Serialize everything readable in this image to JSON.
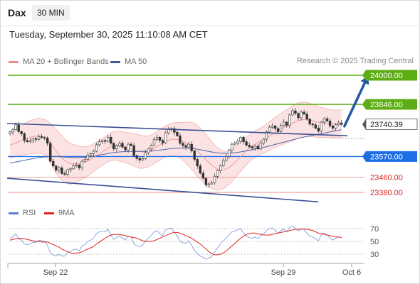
{
  "header": {
    "title": "Dax",
    "timeframe": "30 MIN"
  },
  "datetime": "Tuesday, September 30, 2025 11:10:08 AM CET",
  "copyright": "Research © 2025 Trading Central",
  "legend": {
    "ma_bollinger": {
      "label": "MA 20 + Bollinger Bands",
      "color": "#f08c8c"
    },
    "ma50": {
      "label": "MA 50",
      "color": "#3b5a9a"
    },
    "rsi": {
      "label": "RSI",
      "color": "#5a7fd0"
    },
    "ma9": {
      "label": "9MA",
      "color": "#e02020"
    }
  },
  "chart_data": [
    {
      "type": "candlestick",
      "ylim": [
        23330,
        24030
      ],
      "x_ticks": [
        "Sep 22",
        "Sep 29",
        "Oct 6"
      ],
      "levels": [
        {
          "value": 24000.0,
          "label": "24000.00",
          "style": "resistance",
          "color": "#5cae14"
        },
        {
          "value": 23846.0,
          "label": "23846.00",
          "style": "resistance",
          "color": "#5cae14"
        },
        {
          "value": 23740.39,
          "label": "23740.39",
          "style": "current",
          "color": "#333333"
        },
        {
          "value": 23570.0,
          "label": "23570.00",
          "style": "pivot",
          "color": "#1e6ee6"
        },
        {
          "value": 23460.0,
          "label": "23460.00",
          "style": "support",
          "color": "#e03030"
        },
        {
          "value": 23380.0,
          "label": "23380.00",
          "style": "support",
          "color": "#e03030"
        }
      ],
      "channel": {
        "upper": [
          [
            0,
            23745
          ],
          [
            117,
            23680
          ]
        ],
        "lower": [
          [
            0,
            23455
          ],
          [
            107,
            23330
          ]
        ]
      },
      "projection": [
        [
          116,
          23730
        ],
        [
          124,
          23990
        ]
      ],
      "closes": [
        23700,
        23712,
        23738,
        23702,
        23690,
        23655,
        23648,
        23652,
        23665,
        23660,
        23675,
        23671,
        23668,
        23640,
        23545,
        23520,
        23498,
        23510,
        23480,
        23476,
        23500,
        23505,
        23520,
        23525,
        23510,
        23545,
        23555,
        23578,
        23585,
        23598,
        23632,
        23648,
        23655,
        23650,
        23672,
        23640,
        23610,
        23625,
        23640,
        23620,
        23605,
        23635,
        23628,
        23575,
        23560,
        23552,
        23560,
        23590,
        23610,
        23630,
        23660,
        23672,
        23655,
        23642,
        23695,
        23712,
        23718,
        23698,
        23680,
        23640,
        23628,
        23620,
        23635,
        23600,
        23555,
        23520,
        23482,
        23455,
        23420,
        23425,
        23430,
        23465,
        23495,
        23520,
        23550,
        23570,
        23605,
        23635,
        23640,
        23650,
        23672,
        23648,
        23630,
        23622,
        23615,
        23625,
        23610,
        23640,
        23662,
        23700,
        23725,
        23732,
        23718,
        23702,
        23735,
        23752,
        23735,
        23790,
        23812,
        23798,
        23775,
        23805,
        23795,
        23768,
        23742,
        23738,
        23720,
        23705,
        23752,
        23770,
        23758,
        23732,
        23720,
        23738,
        23748,
        23740
      ],
      "ma20": [
        23630,
        23636,
        23642,
        23648,
        23655,
        23662,
        23668,
        23672,
        23676,
        23678,
        23680,
        23678,
        23672,
        23660,
        23642,
        23620,
        23598,
        23580,
        23562,
        23548,
        23538,
        23532,
        23530,
        23532,
        23534,
        23536,
        23540,
        23546,
        23554,
        23564,
        23574,
        23584,
        23594,
        23604,
        23614,
        23622,
        23626,
        23628,
        23626,
        23622,
        23618,
        23614,
        23610,
        23606,
        23600,
        23596,
        23594,
        23594,
        23598,
        23604,
        23612,
        23622,
        23632,
        23642,
        23650,
        23656,
        23660,
        23662,
        23660,
        23656,
        23650,
        23644,
        23636,
        23626,
        23614,
        23600,
        23584,
        23568,
        23552,
        23538,
        23524,
        23512,
        23504,
        23500,
        23500,
        23504,
        23512,
        23524,
        23538,
        23554,
        23570,
        23586,
        23600,
        23614,
        23626,
        23636,
        23644,
        23652,
        23660,
        23668,
        23678,
        23688,
        23698,
        23706,
        23714,
        23722,
        23730,
        23738,
        23746,
        23754,
        23760,
        23764,
        23766,
        23766,
        23764,
        23760,
        23756,
        23752,
        23750,
        23748,
        23746,
        23745,
        23744,
        23744,
        23744,
        23744
      ],
      "ma50": [
        23535,
        23538,
        23541,
        23544,
        23547,
        23550,
        23553,
        23556,
        23559,
        23562,
        23564,
        23566,
        23568,
        23569,
        23570,
        23570,
        23570,
        23569,
        23568,
        23567,
        23566,
        23565,
        23564,
        23564,
        23564,
        23565,
        23566,
        23567,
        23569,
        23571,
        23574,
        23577,
        23580,
        23583,
        23586,
        23589,
        23591,
        23593,
        23594,
        23595,
        23596,
        23597,
        23597,
        23597,
        23597,
        23597,
        23597,
        23597,
        23598,
        23599,
        23600,
        23602,
        23604,
        23606,
        23608,
        23610,
        23612,
        23613,
        23614,
        23615,
        23615,
        23615,
        23614,
        23613,
        23611,
        23609,
        23606,
        23603,
        23600,
        23597,
        23594,
        23591,
        23589,
        23588,
        23587,
        23587,
        23587,
        23588,
        23590,
        23592,
        23594,
        23597,
        23600,
        23603,
        23606,
        23609,
        23612,
        23615,
        23618,
        23622,
        23626,
        23630,
        23634,
        23638,
        23642,
        23646,
        23650,
        23654,
        23658,
        23662,
        23666,
        23670,
        23673,
        23676,
        23679,
        23682,
        23685,
        23688,
        23691,
        23694,
        23697,
        23700,
        23703,
        23706,
        23709,
        23712
      ],
      "band_width": [
        70,
        70,
        72,
        74,
        78,
        82,
        86,
        88,
        90,
        92,
        92,
        92,
        94,
        98,
        104,
        110,
        116,
        118,
        118,
        116,
        112,
        108,
        104,
        98,
        92,
        86,
        82,
        78,
        76,
        74,
        72,
        70,
        70,
        70,
        72,
        74,
        76,
        78,
        80,
        80,
        80,
        82,
        84,
        86,
        88,
        88,
        86,
        84,
        82,
        80,
        80,
        80,
        80,
        80,
        82,
        84,
        86,
        88,
        90,
        94,
        100,
        108,
        116,
        124,
        130,
        134,
        136,
        136,
        134,
        130,
        124,
        118,
        112,
        106,
        100,
        94,
        90,
        86,
        82,
        80,
        78,
        76,
        74,
        72,
        70,
        70,
        70,
        70,
        72,
        74,
        76,
        78,
        80,
        82,
        84,
        86,
        88,
        90,
        92,
        94,
        94,
        94,
        92,
        90,
        88,
        86,
        84,
        82,
        80,
        78,
        76,
        74,
        72,
        72,
        72,
        72
      ]
    },
    {
      "type": "line",
      "title": "RSI",
      "ylim": [
        20,
        80
      ],
      "y_ticks": [
        70,
        50,
        30
      ],
      "series": [
        {
          "name": "RSI",
          "values": [
            55,
            57,
            62,
            54,
            52,
            46,
            45,
            46,
            49,
            48,
            52,
            51,
            50,
            44,
            32,
            29,
            27,
            30,
            27,
            27,
            33,
            34,
            37,
            38,
            35,
            43,
            45,
            50,
            52,
            55,
            62,
            65,
            66,
            65,
            69,
            60,
            53,
            56,
            59,
            55,
            52,
            58,
            57,
            46,
            43,
            42,
            44,
            51,
            55,
            59,
            65,
            67,
            62,
            59,
            68,
            70,
            71,
            64,
            59,
            50,
            48,
            47,
            51,
            44,
            36,
            31,
            27,
            25,
            22,
            24,
            26,
            33,
            40,
            46,
            51,
            55,
            61,
            65,
            66,
            68,
            70,
            63,
            58,
            56,
            55,
            57,
            54,
            59,
            62,
            67,
            70,
            71,
            67,
            63,
            67,
            69,
            65,
            72,
            74,
            70,
            66,
            70,
            68,
            63,
            58,
            57,
            54,
            51,
            60,
            63,
            60,
            55,
            52,
            55,
            57,
            56
          ]
        },
        {
          "name": "9MA",
          "values": [
            52,
            53,
            54,
            55,
            55,
            54,
            53,
            52,
            51,
            50,
            50,
            49,
            49,
            49,
            47,
            45,
            43,
            41,
            38,
            36,
            34,
            32,
            31,
            32,
            32,
            34,
            36,
            38,
            40,
            42,
            46,
            49,
            52,
            55,
            58,
            60,
            61,
            61,
            61,
            60,
            59,
            58,
            57,
            56,
            55,
            53,
            51,
            50,
            50,
            50,
            51,
            53,
            55,
            57,
            59,
            61,
            63,
            64,
            64,
            63,
            61,
            59,
            57,
            55,
            52,
            49,
            46,
            42,
            38,
            34,
            31,
            29,
            29,
            30,
            32,
            35,
            39,
            43,
            47,
            51,
            55,
            58,
            61,
            62,
            63,
            63,
            62,
            61,
            60,
            60,
            60,
            61,
            62,
            63,
            64,
            65,
            66,
            67,
            68,
            69,
            69,
            69,
            69,
            69,
            68,
            67,
            65,
            63,
            62,
            61,
            60,
            59,
            58,
            57,
            57,
            56
          ]
        }
      ]
    }
  ]
}
